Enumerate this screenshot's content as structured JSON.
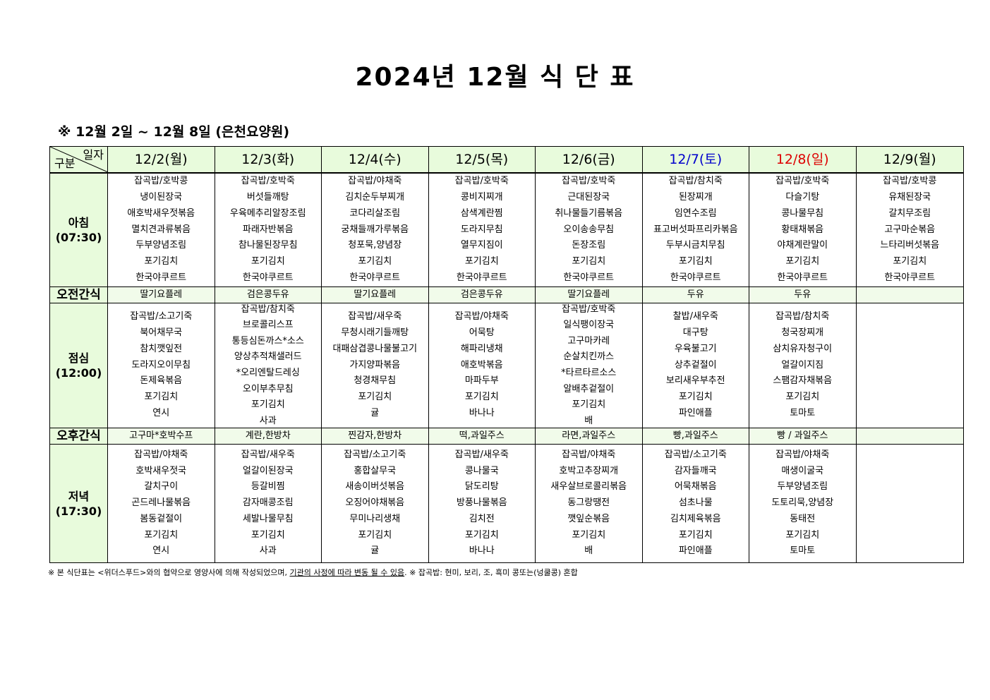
{
  "title": "2024년 12월 식 단 표",
  "subtitle": "※ 12월 2일 ~ 12월 8일 (은천요양원)",
  "header": {
    "corner_top": "일자",
    "corner_bottom": "구분"
  },
  "colors": {
    "header_bg": "#e8fbdc",
    "saturday": "#0000cc",
    "sunday": "#dd0000"
  },
  "days": [
    {
      "label": "12/2(월)",
      "color": "#000000"
    },
    {
      "label": "12/3(화)",
      "color": "#000000"
    },
    {
      "label": "12/4(수)",
      "color": "#000000"
    },
    {
      "label": "12/5(목)",
      "color": "#000000"
    },
    {
      "label": "12/6(금)",
      "color": "#000000"
    },
    {
      "label": "12/7(토)",
      "color": "#0000cc"
    },
    {
      "label": "12/8(일)",
      "color": "#dd0000"
    },
    {
      "label": "12/9(월)",
      "color": "#000000"
    }
  ],
  "rows": [
    {
      "label": "아침",
      "time": "(07:30)",
      "type": "meal",
      "cells": [
        [
          "잡곡밥/호박콩",
          "냉이된장국",
          "애호박새우젓볶음",
          "멸치견과류볶음",
          "두부양념조림",
          "포기김치",
          "한국야쿠르트"
        ],
        [
          "잡곡밥/호박죽",
          "버섯들깨탕",
          "우육메추리알장조림",
          "파래자반볶음",
          "참나물된장무침",
          "포기김치",
          "한국야쿠르트"
        ],
        [
          "잡곡밥/야채죽",
          "김치순두부찌개",
          "코다리살조림",
          "궁채들깨가루볶음",
          "청포묵,양념장",
          "포기김치",
          "한국야쿠르트"
        ],
        [
          "잡곡밥/호박죽",
          "콩비지찌개",
          "삼색계란찜",
          "도라지무침",
          "열무지짐이",
          "포기김치",
          "한국야쿠르트"
        ],
        [
          "잡곡밥/호박죽",
          "근대된장국",
          "취나물들기름볶음",
          "오이송송무침",
          "돈장조림",
          "포기김치",
          "한국야쿠르트"
        ],
        [
          "잡곡밥/참치죽",
          "된장찌개",
          "임연수조림",
          "표고버섯파프리카볶음",
          "두부시금치무침",
          "포기김치",
          "한국야쿠르트"
        ],
        [
          "잡곡밥/호박죽",
          "다슬기탕",
          "콩나물무침",
          "황태채볶음",
          "야채계란말이",
          "포기김치",
          "한국야쿠르트"
        ],
        [
          "잡곡밥/호박콩",
          "유채된장국",
          "갈치무조림",
          "고구마순볶음",
          "느타리버섯볶음",
          "포기김치",
          "한국야쿠르트"
        ]
      ]
    },
    {
      "label": "오전간식",
      "type": "snack",
      "cells": [
        [
          "딸기요플레"
        ],
        [
          "검은콩두유"
        ],
        [
          "딸기요플레"
        ],
        [
          "검은콩두유"
        ],
        [
          "딸기요플레"
        ],
        [
          "두유"
        ],
        [
          "두유"
        ],
        []
      ]
    },
    {
      "label": "점심",
      "time": "(12:00)",
      "type": "meal",
      "cells": [
        [
          "잡곡밥/소고기죽",
          "북어채무국",
          "참치깻잎전",
          "도라지오이무침",
          "돈제육볶음",
          "포기김치",
          "연시"
        ],
        [
          "잡곡밥/참치죽",
          "브로콜리스프",
          "통등심돈까스*소스",
          "양상추적채샐러드",
          "*오리엔탈드레싱",
          "오이부추무침",
          "포기김치",
          "사과"
        ],
        [
          "잡곡밥/새우죽",
          "무청시래기들깨탕",
          "대패삼겹콩나물불고기",
          "가지양파볶음",
          "청경채무침",
          "포기김치",
          "귤"
        ],
        [
          "잡곡밥/야채죽",
          "어묵탕",
          "해파리냉채",
          "애호박볶음",
          "마파두부",
          "포기김치",
          "바나나"
        ],
        [
          "잡곡밥/호박죽",
          "일식팽이장국",
          "고구마카레",
          "순살치킨까스",
          "*타르타르소스",
          "알배추겉절이",
          "포기김치",
          "배"
        ],
        [
          "찰밥/새우죽",
          "대구탕",
          "우육불고기",
          "상추겉절이",
          "보리새우부추전",
          "포기김치",
          "파인애플"
        ],
        [
          "잡곡밥/참치죽",
          "청국장찌개",
          "삼치유자청구이",
          "얼갈이지짐",
          "스팸감자채볶음",
          "포기김치",
          "토마토"
        ],
        []
      ]
    },
    {
      "label": "오후간식",
      "type": "snack",
      "cells": [
        [
          "고구마*호박수프"
        ],
        [
          "계란,한방차"
        ],
        [
          "찐감자,한방차"
        ],
        [
          "떡,과일주스"
        ],
        [
          "라면,과일주스"
        ],
        [
          "빵,과일주스"
        ],
        [
          "빵 / 과일주스"
        ],
        []
      ]
    },
    {
      "label": "저녁",
      "time": "(17:30)",
      "type": "meal",
      "cells": [
        [
          "잡곡밥/야채죽",
          "호박새우젓국",
          "갈치구이",
          "곤드레나물볶음",
          "봄동겉절이",
          "포기김치",
          "연시"
        ],
        [
          "잡곡밥/새우죽",
          "얼갈이된장국",
          "등갈비찜",
          "감자매콩조림",
          "세발나물무침",
          "포기김치",
          "사과"
        ],
        [
          "잡곡밥/소고기죽",
          "홍합살무국",
          "새송이버섯볶음",
          "오징어야채볶음",
          "무미나리생채",
          "포기김치",
          "귤"
        ],
        [
          "잡곡밥/새우죽",
          "콩나물국",
          "닭도리탕",
          "방풍나물볶음",
          "김치전",
          "포기김치",
          "바나나"
        ],
        [
          "잡곡밥/야채죽",
          "호박고추장찌개",
          "새우살브로콜리볶음",
          "동그랑땡전",
          "깻잎순볶음",
          "포기김치",
          "배"
        ],
        [
          "잡곡밥/소고기죽",
          "감자들깨국",
          "어묵채볶음",
          "섬초나물",
          "김치제육볶음",
          "포기김치",
          "파인애플"
        ],
        [
          "잡곡밥/야채죽",
          "매생이굴국",
          "두부양념조림",
          "도토리묵,양념장",
          "동태전",
          "포기김치",
          "토마토"
        ],
        []
      ]
    }
  ],
  "footer": {
    "part1": "※ 본 식단표는 <위더스푸드>와의 협약으로 영양사에 의해 작성되었으며, ",
    "underlined": "기관의 사정에 따라 변동 될 수 있음",
    "part2": ". ※ 잡곡밥: 현미, 보리, 조, 흑미 콩또는(넝쿨콩) 혼합"
  }
}
